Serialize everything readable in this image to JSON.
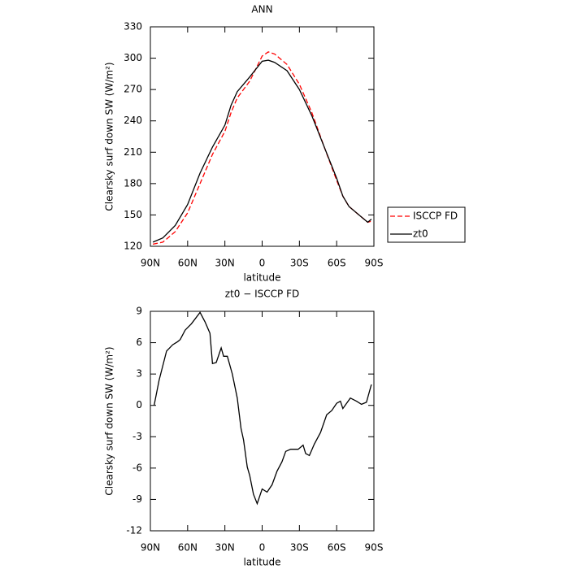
{
  "chart_data": [
    {
      "type": "line",
      "title": "ANN",
      "x_label": "latitude",
      "y_label": "Clearsky surf down SW (W/m²)",
      "x": [
        -88,
        -80,
        -70,
        -60,
        -50,
        -40,
        -30,
        -25,
        -20,
        -10,
        0,
        5,
        10,
        20,
        30,
        40,
        50,
        60,
        65,
        70,
        80,
        85,
        88
      ],
      "series": [
        {
          "name": "ISCCP FD",
          "color": "#ff0000",
          "dash": "dashed",
          "values": [
            122,
            124,
            134,
            152,
            180,
            208,
            230,
            248,
            262,
            278,
            302,
            306,
            304,
            294,
            275,
            248,
            215,
            183,
            168,
            158,
            148,
            143,
            144
          ]
        },
        {
          "name": "zt0",
          "color": "#000000",
          "dash": "solid",
          "values": [
            124,
            128,
            140,
            160,
            190,
            215,
            236,
            255,
            268,
            282,
            297,
            298,
            296,
            288,
            270,
            245,
            215,
            185,
            168,
            158,
            148,
            143,
            146
          ]
        }
      ],
      "xlim": [
        -90,
        90
      ],
      "xticks": [
        {
          "value": -90,
          "label": "90N"
        },
        {
          "value": -60,
          "label": "60N"
        },
        {
          "value": -30,
          "label": "30N"
        },
        0,
        {
          "value": 30,
          "label": "30S"
        },
        {
          "value": 60,
          "label": "60S"
        },
        {
          "value": 90,
          "label": "90S"
        }
      ],
      "ylim": [
        120,
        330
      ],
      "yticks": [
        120,
        150,
        180,
        210,
        240,
        270,
        300,
        330
      ],
      "legend": "outside-right"
    },
    {
      "type": "line",
      "title": "zt0 − ISCCP FD",
      "x_label": "latitude",
      "y_label": "Clearsky surf down SW (W/m²)",
      "x": [
        -87,
        -83,
        -77,
        -72,
        -68,
        -66,
        -62,
        -57,
        -50,
        -46,
        -42,
        -40,
        -37,
        -33,
        -31,
        -28,
        -24,
        -20,
        -17,
        -15,
        -12,
        -10,
        -7,
        -4,
        0,
        4,
        8,
        12,
        16,
        19,
        23,
        29,
        33,
        35,
        38,
        42,
        47,
        52,
        56,
        60,
        63,
        65,
        71,
        76,
        80,
        84,
        88
      ],
      "color": "#000000",
      "values": [
        0,
        2.4,
        5.2,
        5.8,
        6.1,
        6.3,
        7.2,
        7.8,
        8.9,
        8.0,
        6.9,
        4.0,
        4.1,
        5.5,
        4.7,
        4.7,
        3.0,
        0.7,
        -2.2,
        -3.3,
        -5.9,
        -6.7,
        -8.5,
        -9.4,
        -8.0,
        -8.3,
        -7.6,
        -6.3,
        -5.4,
        -4.4,
        -4.2,
        -4.2,
        -3.8,
        -4.6,
        -4.8,
        -3.7,
        -2.6,
        -0.9,
        -0.5,
        0.2,
        0.4,
        -0.3,
        0.7,
        0.4,
        0.1,
        0.3,
        2.0
      ],
      "xlim": [
        -90,
        90
      ],
      "xticks": [
        {
          "value": -90,
          "label": "90N"
        },
        {
          "value": -60,
          "label": "60N"
        },
        {
          "value": -30,
          "label": "30N"
        },
        0,
        {
          "value": 30,
          "label": "30S"
        },
        {
          "value": 60,
          "label": "60S"
        },
        {
          "value": 90,
          "label": "90S"
        }
      ],
      "ylim": [
        -12,
        9
      ],
      "yticks": [
        -12,
        -9,
        -6,
        -3,
        0,
        3,
        6,
        9
      ]
    }
  ]
}
